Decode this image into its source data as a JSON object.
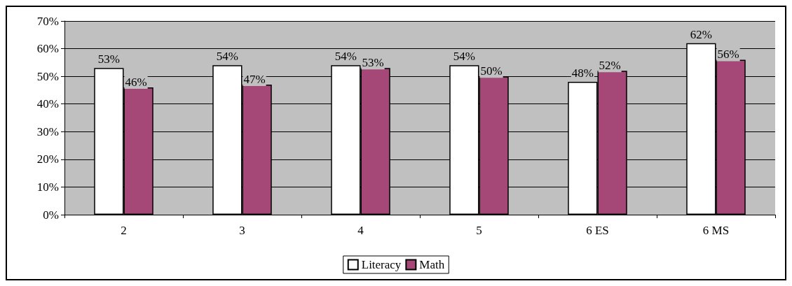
{
  "chart_data": {
    "type": "bar",
    "categories": [
      "2",
      "3",
      "4",
      "5",
      "6 ES",
      "6 MS"
    ],
    "series": [
      {
        "name": "Literacy",
        "color": "#ffffff",
        "values": [
          53,
          54,
          54,
          54,
          48,
          62
        ],
        "value_labels": [
          "53%",
          "54%",
          "54%",
          "54%",
          "48%",
          "62%"
        ]
      },
      {
        "name": "Math",
        "color": "#a64877",
        "values": [
          46,
          47,
          53,
          50,
          52,
          56
        ],
        "value_labels": [
          "46%",
          "47%",
          "53%",
          "50%",
          "52%",
          "56%"
        ]
      }
    ],
    "ylim": [
      0,
      70
    ],
    "yticks": [
      {
        "value": 0,
        "label": "0%"
      },
      {
        "value": 10,
        "label": "10%"
      },
      {
        "value": 20,
        "label": "20%"
      },
      {
        "value": 30,
        "label": "30%"
      },
      {
        "value": 40,
        "label": "40%"
      },
      {
        "value": 50,
        "label": "50%"
      },
      {
        "value": 60,
        "label": "60%"
      },
      {
        "value": 70,
        "label": "70%"
      }
    ],
    "grid": "y",
    "legend": "bottom"
  }
}
